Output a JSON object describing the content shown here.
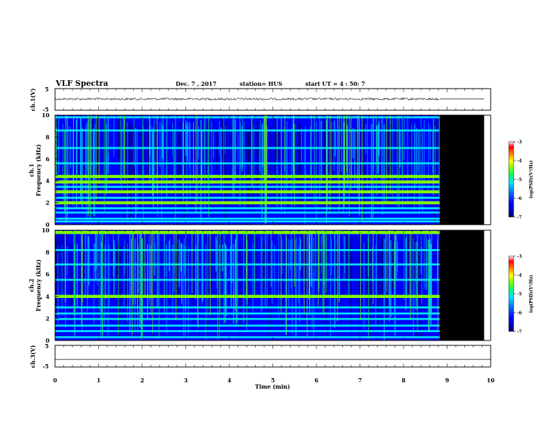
{
  "header": {
    "title": "VLF Spectra",
    "date": "Dec. 7 , 2017",
    "station": "station= HUS",
    "start": "start  UT  =   4 : 50: 7"
  },
  "colors": {
    "background": "#ffffff",
    "no_data": "#000000",
    "trace": "#000000",
    "colormap": [
      "#00007a",
      "#0000ff",
      "#0080ff",
      "#00e6ff",
      "#00ff60",
      "#80ff00",
      "#ffff00",
      "#ff8000",
      "#ff0000",
      "#ffffff"
    ]
  },
  "chart_data": [
    {
      "type": "line",
      "id": "ch1-voltage",
      "ylabel": "ch.1(V)",
      "ylim": [
        -5,
        5
      ],
      "yticks": [
        "5",
        "-5"
      ],
      "xlim": [
        0,
        10
      ],
      "series": [
        {
          "x": [
            0,
            8.83
          ],
          "y": [
            0.2,
            0.2
          ],
          "style": "noisy"
        },
        {
          "x": [
            8.83,
            9.85
          ],
          "y": [
            0.2,
            0.2
          ],
          "style": "flat"
        }
      ]
    },
    {
      "type": "heatmap",
      "id": "ch1-spectrogram",
      "ylabel_channel": "ch.1",
      "ylabel": "Frequency (kHz)",
      "ylim": [
        0,
        10
      ],
      "yticks": [
        "0",
        "2",
        "4",
        "6",
        "8",
        "10"
      ],
      "xlim": [
        0,
        10
      ],
      "data_end_min": 8.83,
      "panel_end_min": 9.85,
      "colorbar": {
        "label": "log(PSD)(V²/Hz)",
        "range": [
          -7,
          -3
        ],
        "ticks": [
          "-3",
          "-4",
          "-5",
          "-6",
          "-7"
        ]
      },
      "line_bands_khz": [
        0.3,
        0.55,
        1.1,
        1.5,
        2.0,
        2.45,
        3.0,
        3.45,
        3.9,
        4.4,
        5.6,
        7.0,
        8.6,
        9.8
      ],
      "bright_band_khz": [
        2.0,
        3.0,
        3.9,
        4.4
      ],
      "background_level": -6.2
    },
    {
      "type": "heatmap",
      "id": "ch2-spectrogram",
      "ylabel_channel": "ch.2",
      "ylabel": "Frequency (kHz)",
      "ylim": [
        0,
        10
      ],
      "yticks": [
        "0",
        "2",
        "4",
        "6",
        "8",
        "10"
      ],
      "xlim": [
        0,
        10
      ],
      "data_end_min": 8.83,
      "panel_end_min": 9.85,
      "colorbar": {
        "label": "log(PSD)(V²/Hz)",
        "range": [
          -7,
          -3
        ],
        "ticks": [
          "-3",
          "-4",
          "-5",
          "-6",
          "-7"
        ]
      },
      "line_bands_khz": [
        0.3,
        0.85,
        1.35,
        1.95,
        2.45,
        3.0,
        4.0,
        5.5,
        6.9,
        8.2,
        9.8
      ],
      "bright_band_khz": [
        4.0,
        9.8
      ],
      "background_level": -6.4
    },
    {
      "type": "line",
      "id": "ch3-voltage",
      "ylabel": "ch.3(V)",
      "ylim": [
        -5,
        5
      ],
      "yticks": [
        "5",
        "-5"
      ],
      "xlim": [
        0,
        10
      ],
      "xlabel": "Time (min)",
      "xticks": [
        "0",
        "1",
        "2",
        "3",
        "4",
        "5",
        "6",
        "7",
        "8",
        "9",
        "10"
      ],
      "series": [
        {
          "x": [
            0,
            10
          ],
          "y": [
            -1.5,
            -1.5
          ],
          "style": "flat"
        }
      ]
    }
  ]
}
